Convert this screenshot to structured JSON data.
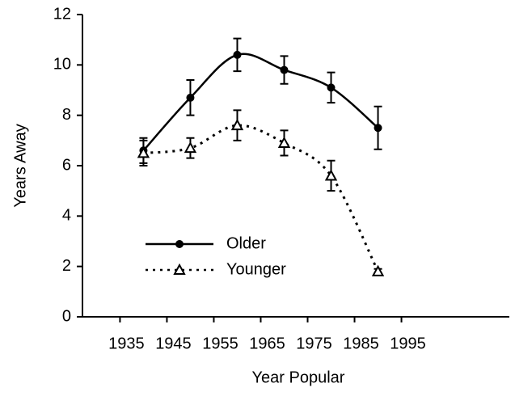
{
  "chart_data": {
    "type": "line",
    "xlabel": "Year Popular",
    "ylabel": "Years Away",
    "xlim": [
      1927,
      2018
    ],
    "xticks": [
      1935,
      1945,
      1955,
      1965,
      1975,
      1985,
      1995
    ],
    "ylim": [
      0,
      12
    ],
    "yticks": [
      0,
      2,
      4,
      6,
      8,
      10,
      12
    ],
    "grid": false,
    "legend": "lower left",
    "x": [
      1940,
      1950,
      1960,
      1970,
      1980,
      1990
    ],
    "series": [
      {
        "name": "Older",
        "color": "#000000",
        "marker": "circle",
        "linestyle": "solid",
        "values": [
          6.6,
          8.7,
          10.4,
          9.8,
          9.1,
          7.5
        ],
        "errors": [
          0.5,
          0.7,
          0.65,
          0.55,
          0.6,
          0.85
        ]
      },
      {
        "name": "Younger",
        "color": "#000000",
        "marker": "triangle",
        "linestyle": "dotted",
        "values": [
          6.5,
          6.7,
          7.6,
          6.9,
          5.6,
          1.8
        ],
        "errors": [
          0.5,
          0.4,
          0.6,
          0.5,
          0.6,
          0.1
        ]
      }
    ]
  }
}
